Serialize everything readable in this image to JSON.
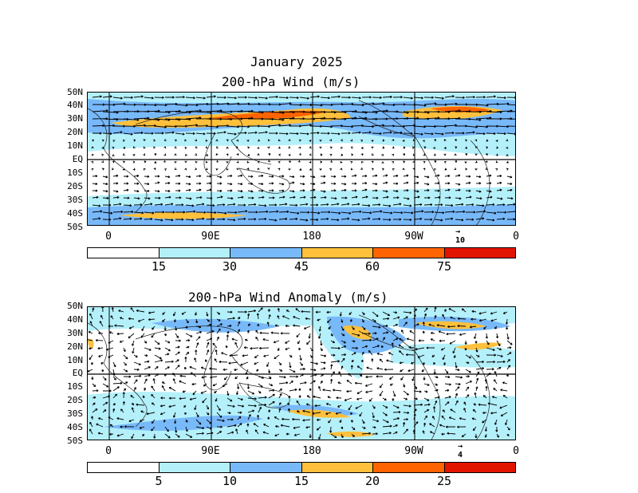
{
  "title": "January 2025",
  "panels": [
    {
      "title": "200-hPa Wind (m/s)",
      "lat_labels": [
        "50N",
        "40N",
        "30N",
        "20N",
        "10N",
        "EQ",
        "10S",
        "20S",
        "30S",
        "40S",
        "50S"
      ],
      "lon_labels": [
        "0",
        "90E",
        "180",
        "90W",
        "0"
      ],
      "ref_vector": "10",
      "colorbar": {
        "colors": [
          "#ffffff",
          "#b4f0fa",
          "#78b9fa",
          "#ffc03c",
          "#ff6400",
          "#e11400"
        ],
        "labels": [
          "15",
          "30",
          "45",
          "60",
          "75"
        ]
      }
    },
    {
      "title": "200-hPa Wind Anomaly (m/s)",
      "lat_labels": [
        "50N",
        "40N",
        "30N",
        "20N",
        "10N",
        "EQ",
        "10S",
        "20S",
        "30S",
        "40S",
        "50S"
      ],
      "lon_labels": [
        "0",
        "90E",
        "180",
        "90W",
        "0"
      ],
      "ref_vector": "4",
      "colorbar": {
        "colors": [
          "#ffffff",
          "#b4f0fa",
          "#78b9fa",
          "#ffc03c",
          "#ff6400",
          "#e11400"
        ],
        "labels": [
          "5",
          "10",
          "15",
          "20",
          "25"
        ]
      }
    }
  ]
}
